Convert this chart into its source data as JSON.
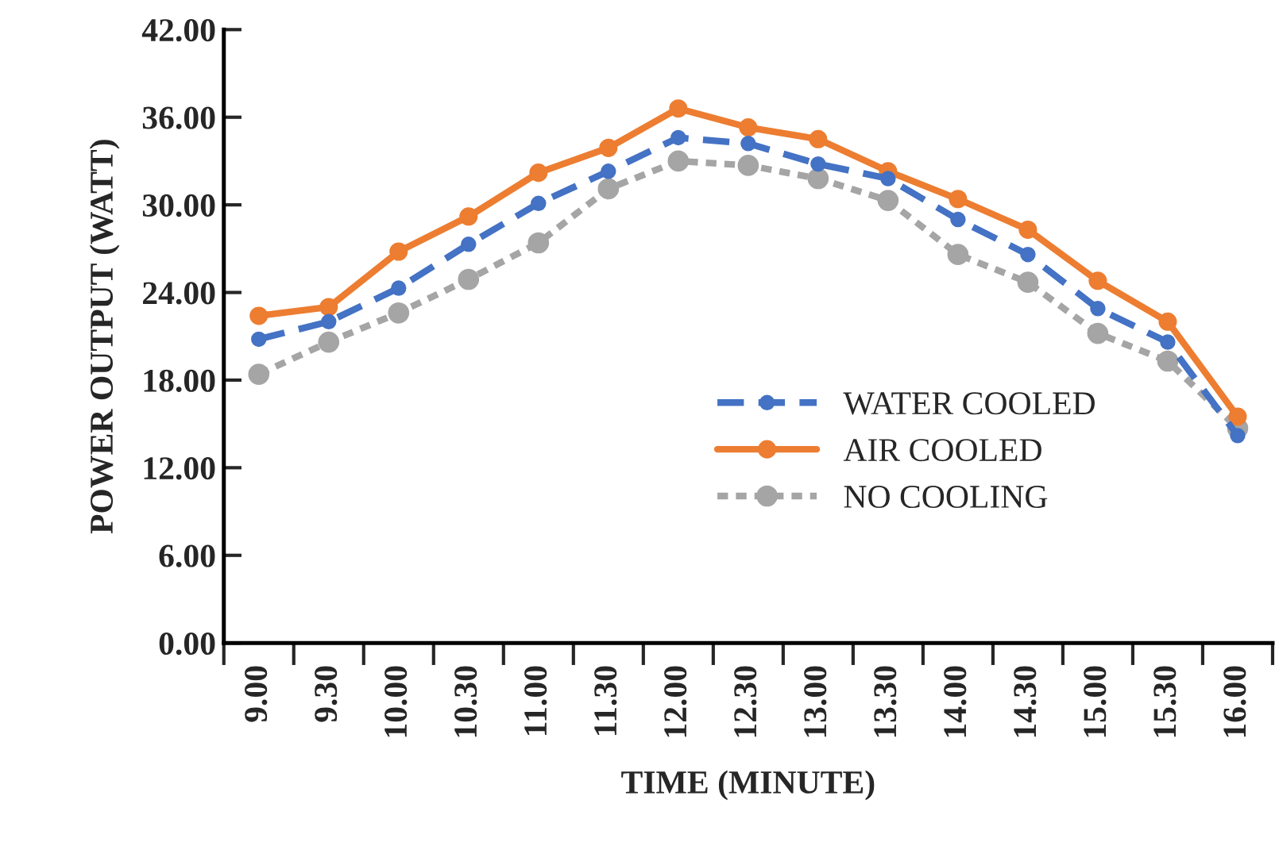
{
  "chart_data": {
    "type": "line",
    "xlabel": "TIME (MINUTE)",
    "ylabel": "POWER OUTPUT (WATT)",
    "categories": [
      "9.00",
      "9.30",
      "10.00",
      "10.30",
      "11.00",
      "11.30",
      "12.00",
      "12.30",
      "13.00",
      "13.30",
      "14.00",
      "14.30",
      "15.00",
      "15.30",
      "16.00"
    ],
    "series": [
      {
        "name": "WATER COOLED",
        "color": "#4472c4",
        "line_style": "dashed",
        "values": [
          20.8,
          22.0,
          24.3,
          27.3,
          30.1,
          32.3,
          34.6,
          34.2,
          32.8,
          31.8,
          29.0,
          26.6,
          22.9,
          20.6,
          14.2
        ]
      },
      {
        "name": "AIR COOLED",
        "color": "#ed7d31",
        "line_style": "solid",
        "values": [
          22.4,
          23.0,
          26.8,
          29.2,
          32.2,
          33.9,
          36.6,
          35.3,
          34.5,
          32.3,
          30.4,
          28.3,
          24.8,
          22.0,
          15.5
        ]
      },
      {
        "name": "NO COOLING",
        "color": "#a5a5a5",
        "line_style": "dotted",
        "values": [
          18.4,
          20.6,
          22.6,
          24.9,
          27.4,
          31.1,
          33.0,
          32.7,
          31.8,
          30.3,
          26.6,
          24.7,
          21.2,
          19.3,
          14.7
        ]
      }
    ],
    "ylim": [
      0,
      42
    ],
    "yticks": [
      {
        "value": 0,
        "label": "0.00"
      },
      {
        "value": 6,
        "label": "6.00"
      },
      {
        "value": 12,
        "label": "12.00"
      },
      {
        "value": 18,
        "label": "18.00"
      },
      {
        "value": 24,
        "label": "24.00"
      },
      {
        "value": 30,
        "label": "30.00"
      },
      {
        "value": 36,
        "label": "36.00"
      },
      {
        "value": 42,
        "label": "42.00"
      }
    ],
    "marker": "circle",
    "grid": false,
    "legend": "center right"
  }
}
